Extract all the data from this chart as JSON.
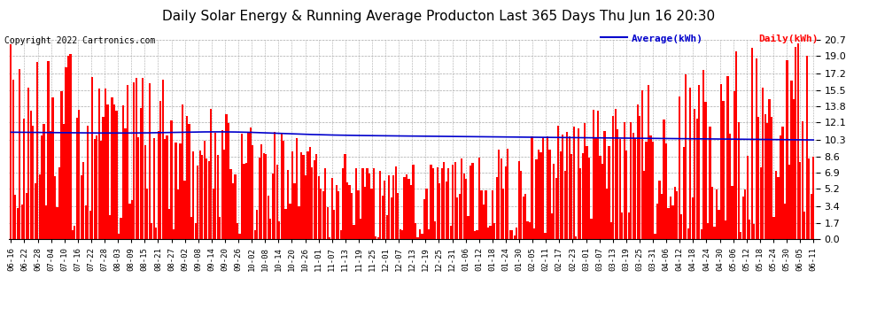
{
  "title": "Daily Solar Energy & Running Average Producton Last 365 Days Thu Jun 16 20:30",
  "copyright": "Copyright 2022 Cartronics.com",
  "yticks": [
    0.0,
    1.7,
    3.4,
    5.2,
    6.9,
    8.6,
    10.3,
    12.1,
    13.8,
    15.5,
    17.2,
    19.0,
    20.7
  ],
  "ymax": 20.7,
  "ymin": 0.0,
  "bar_color": "#ff0000",
  "avg_color": "#0000cc",
  "background_color": "#ffffff",
  "grid_color": "#aaaaaa",
  "title_fontsize": 11,
  "copyright_fontsize": 7,
  "legend_avg_label": "Average(kWh)",
  "legend_daily_label": "Daily(kWh)",
  "n_days": 366,
  "x_tick_labels": [
    "06-16",
    "06-22",
    "06-28",
    "07-04",
    "07-10",
    "07-16",
    "07-22",
    "07-28",
    "08-03",
    "08-09",
    "08-15",
    "08-21",
    "08-27",
    "09-02",
    "09-08",
    "09-14",
    "09-20",
    "09-26",
    "10-02",
    "10-08",
    "10-14",
    "10-20",
    "10-26",
    "11-01",
    "11-07",
    "11-13",
    "11-19",
    "11-25",
    "12-01",
    "12-07",
    "12-13",
    "12-19",
    "12-25",
    "12-31",
    "01-06",
    "01-12",
    "01-18",
    "01-24",
    "01-30",
    "02-05",
    "02-11",
    "02-17",
    "02-23",
    "03-01",
    "03-07",
    "03-13",
    "03-19",
    "03-25",
    "03-31",
    "04-06",
    "04-12",
    "04-18",
    "04-24",
    "04-30",
    "05-06",
    "05-12",
    "05-18",
    "05-24",
    "05-30",
    "06-05",
    "06-11"
  ]
}
